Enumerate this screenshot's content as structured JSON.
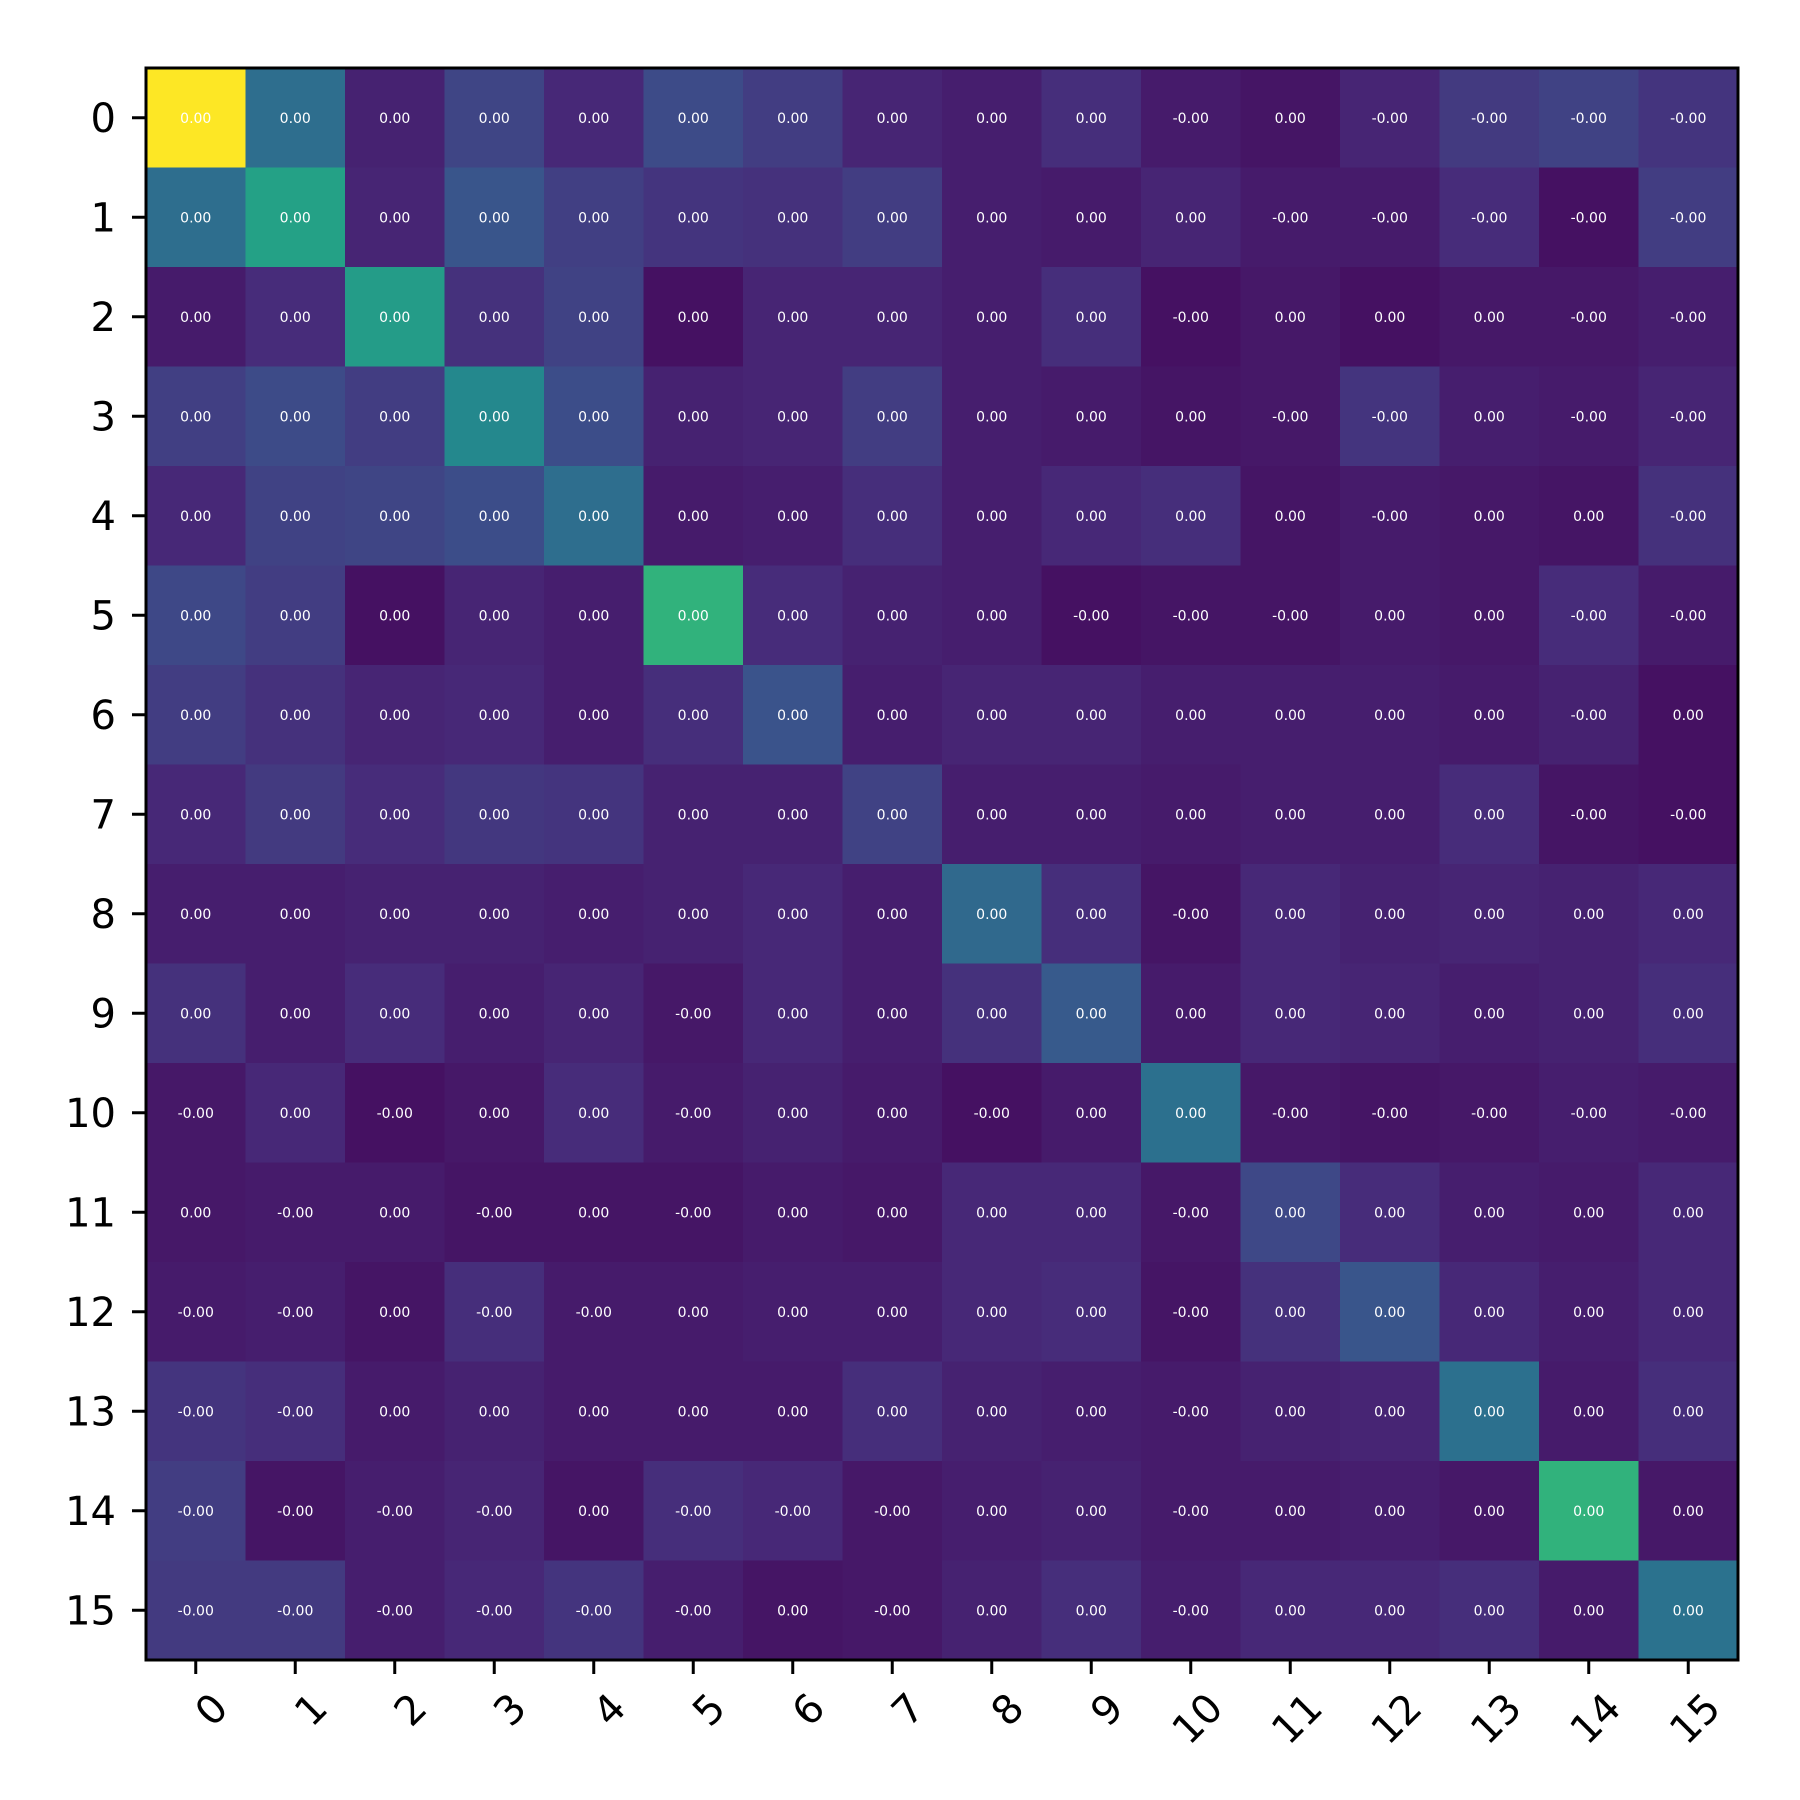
{
  "chart_data": {
    "type": "heatmap",
    "title": "",
    "xlabel": "",
    "ylabel": "",
    "x_ticks": [
      "0",
      "1",
      "2",
      "3",
      "4",
      "5",
      "6",
      "7",
      "8",
      "9",
      "10",
      "11",
      "12",
      "13",
      "14",
      "15"
    ],
    "y_ticks": [
      "0",
      "1",
      "2",
      "3",
      "4",
      "5",
      "6",
      "7",
      "8",
      "9",
      "10",
      "11",
      "12",
      "13",
      "14",
      "15"
    ],
    "colormap": "viridis",
    "vlim": [
      -0.05,
      1.0
    ],
    "intensity": [
      [
        1.0,
        0.33,
        0.05,
        0.17,
        0.07,
        0.19,
        0.14,
        0.06,
        0.04,
        0.09,
        0.03,
        0.01,
        0.06,
        0.13,
        0.16,
        0.11
      ],
      [
        0.33,
        0.55,
        0.06,
        0.23,
        0.15,
        0.11,
        0.1,
        0.14,
        0.04,
        0.03,
        0.06,
        0.03,
        0.03,
        0.08,
        0.0,
        0.14
      ],
      [
        0.03,
        0.08,
        0.53,
        0.1,
        0.16,
        0.0,
        0.06,
        0.06,
        0.04,
        0.09,
        0.0,
        0.02,
        0.0,
        0.02,
        0.02,
        0.04
      ],
      [
        0.15,
        0.19,
        0.14,
        0.44,
        0.2,
        0.05,
        0.06,
        0.14,
        0.04,
        0.03,
        0.01,
        0.02,
        0.11,
        0.04,
        0.03,
        0.06
      ],
      [
        0.07,
        0.16,
        0.17,
        0.2,
        0.33,
        0.03,
        0.04,
        0.09,
        0.04,
        0.07,
        0.09,
        0.01,
        0.03,
        0.02,
        0.01,
        0.1
      ],
      [
        0.18,
        0.14,
        0.0,
        0.06,
        0.04,
        0.63,
        0.08,
        0.05,
        0.04,
        0.0,
        0.01,
        0.01,
        0.03,
        0.02,
        0.08,
        0.03
      ],
      [
        0.14,
        0.1,
        0.06,
        0.07,
        0.04,
        0.09,
        0.22,
        0.04,
        0.06,
        0.06,
        0.04,
        0.04,
        0.04,
        0.03,
        0.05,
        0.0
      ],
      [
        0.07,
        0.13,
        0.08,
        0.12,
        0.11,
        0.05,
        0.05,
        0.16,
        0.04,
        0.04,
        0.03,
        0.04,
        0.04,
        0.08,
        0.01,
        0.0
      ],
      [
        0.04,
        0.04,
        0.05,
        0.05,
        0.04,
        0.05,
        0.07,
        0.04,
        0.31,
        0.09,
        0.01,
        0.07,
        0.05,
        0.06,
        0.05,
        0.07
      ],
      [
        0.1,
        0.04,
        0.08,
        0.04,
        0.06,
        0.02,
        0.07,
        0.04,
        0.1,
        0.25,
        0.03,
        0.07,
        0.06,
        0.04,
        0.05,
        0.09
      ],
      [
        0.02,
        0.07,
        0.0,
        0.02,
        0.08,
        0.03,
        0.05,
        0.03,
        0.0,
        0.03,
        0.34,
        0.02,
        0.01,
        0.02,
        0.04,
        0.03
      ],
      [
        0.02,
        0.03,
        0.03,
        0.01,
        0.01,
        0.01,
        0.03,
        0.02,
        0.07,
        0.07,
        0.02,
        0.18,
        0.08,
        0.04,
        0.03,
        0.07
      ],
      [
        0.03,
        0.04,
        0.01,
        0.09,
        0.03,
        0.03,
        0.04,
        0.04,
        0.07,
        0.08,
        0.01,
        0.1,
        0.23,
        0.07,
        0.04,
        0.07
      ],
      [
        0.11,
        0.09,
        0.03,
        0.05,
        0.03,
        0.03,
        0.03,
        0.09,
        0.05,
        0.04,
        0.03,
        0.05,
        0.06,
        0.34,
        0.03,
        0.09
      ],
      [
        0.14,
        0.01,
        0.04,
        0.06,
        0.01,
        0.09,
        0.07,
        0.02,
        0.04,
        0.05,
        0.03,
        0.03,
        0.04,
        0.02,
        0.63,
        0.02
      ],
      [
        0.13,
        0.13,
        0.04,
        0.07,
        0.11,
        0.04,
        0.01,
        0.02,
        0.05,
        0.09,
        0.04,
        0.07,
        0.07,
        0.09,
        0.03,
        0.35
      ]
    ],
    "cell_labels": [
      [
        "0.00",
        "0.00",
        "0.00",
        "0.00",
        "0.00",
        "0.00",
        "0.00",
        "0.00",
        "0.00",
        "0.00",
        "-0.00",
        "0.00",
        "-0.00",
        "-0.00",
        "-0.00",
        "-0.00"
      ],
      [
        "0.00",
        "0.00",
        "0.00",
        "0.00",
        "0.00",
        "0.00",
        "0.00",
        "0.00",
        "0.00",
        "0.00",
        "0.00",
        "-0.00",
        "-0.00",
        "-0.00",
        "-0.00",
        "-0.00"
      ],
      [
        "0.00",
        "0.00",
        "0.00",
        "0.00",
        "0.00",
        "0.00",
        "0.00",
        "0.00",
        "0.00",
        "0.00",
        "-0.00",
        "0.00",
        "0.00",
        "0.00",
        "-0.00",
        "-0.00"
      ],
      [
        "0.00",
        "0.00",
        "0.00",
        "0.00",
        "0.00",
        "0.00",
        "0.00",
        "0.00",
        "0.00",
        "0.00",
        "0.00",
        "-0.00",
        "-0.00",
        "0.00",
        "-0.00",
        "-0.00"
      ],
      [
        "0.00",
        "0.00",
        "0.00",
        "0.00",
        "0.00",
        "0.00",
        "0.00",
        "0.00",
        "0.00",
        "0.00",
        "0.00",
        "0.00",
        "-0.00",
        "0.00",
        "0.00",
        "-0.00"
      ],
      [
        "0.00",
        "0.00",
        "0.00",
        "0.00",
        "0.00",
        "0.00",
        "0.00",
        "0.00",
        "0.00",
        "-0.00",
        "-0.00",
        "-0.00",
        "0.00",
        "0.00",
        "-0.00",
        "-0.00"
      ],
      [
        "0.00",
        "0.00",
        "0.00",
        "0.00",
        "0.00",
        "0.00",
        "0.00",
        "0.00",
        "0.00",
        "0.00",
        "0.00",
        "0.00",
        "0.00",
        "0.00",
        "-0.00",
        "0.00"
      ],
      [
        "0.00",
        "0.00",
        "0.00",
        "0.00",
        "0.00",
        "0.00",
        "0.00",
        "0.00",
        "0.00",
        "0.00",
        "0.00",
        "0.00",
        "0.00",
        "0.00",
        "-0.00",
        "-0.00"
      ],
      [
        "0.00",
        "0.00",
        "0.00",
        "0.00",
        "0.00",
        "0.00",
        "0.00",
        "0.00",
        "0.00",
        "0.00",
        "-0.00",
        "0.00",
        "0.00",
        "0.00",
        "0.00",
        "0.00"
      ],
      [
        "0.00",
        "0.00",
        "0.00",
        "0.00",
        "0.00",
        "-0.00",
        "0.00",
        "0.00",
        "0.00",
        "0.00",
        "0.00",
        "0.00",
        "0.00",
        "0.00",
        "0.00",
        "0.00"
      ],
      [
        "-0.00",
        "0.00",
        "-0.00",
        "0.00",
        "0.00",
        "-0.00",
        "0.00",
        "0.00",
        "-0.00",
        "0.00",
        "0.00",
        "-0.00",
        "-0.00",
        "-0.00",
        "-0.00",
        "-0.00"
      ],
      [
        "0.00",
        "-0.00",
        "0.00",
        "-0.00",
        "0.00",
        "-0.00",
        "0.00",
        "0.00",
        "0.00",
        "0.00",
        "-0.00",
        "0.00",
        "0.00",
        "0.00",
        "0.00",
        "0.00"
      ],
      [
        "-0.00",
        "-0.00",
        "0.00",
        "-0.00",
        "-0.00",
        "0.00",
        "0.00",
        "0.00",
        "0.00",
        "0.00",
        "-0.00",
        "0.00",
        "0.00",
        "0.00",
        "0.00",
        "0.00"
      ],
      [
        "-0.00",
        "-0.00",
        "0.00",
        "0.00",
        "0.00",
        "0.00",
        "0.00",
        "0.00",
        "0.00",
        "0.00",
        "-0.00",
        "0.00",
        "0.00",
        "0.00",
        "0.00",
        "0.00"
      ],
      [
        "-0.00",
        "-0.00",
        "-0.00",
        "-0.00",
        "0.00",
        "-0.00",
        "-0.00",
        "-0.00",
        "0.00",
        "0.00",
        "-0.00",
        "0.00",
        "0.00",
        "0.00",
        "0.00",
        "0.00"
      ],
      [
        "-0.00",
        "-0.00",
        "-0.00",
        "-0.00",
        "-0.00",
        "-0.00",
        "0.00",
        "-0.00",
        "0.00",
        "0.00",
        "-0.00",
        "0.00",
        "0.00",
        "0.00",
        "0.00",
        "0.00"
      ]
    ],
    "colorbar": false,
    "grid": false,
    "legend": "none",
    "label_color": "#ffffff"
  }
}
